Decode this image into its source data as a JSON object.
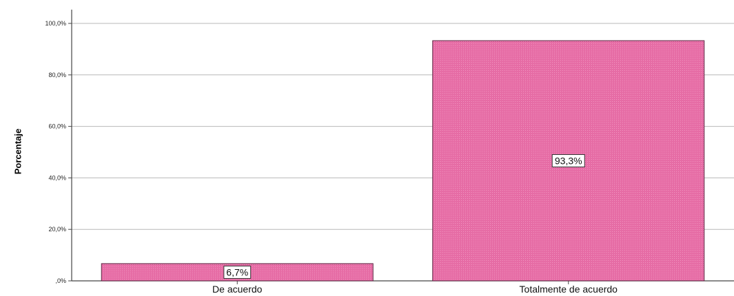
{
  "chart_data": {
    "type": "bar",
    "categories": [
      "De acuerdo",
      "Totalmente de acuerdo"
    ],
    "values": [
      6.7,
      93.3
    ],
    "data_labels": [
      "6,7%",
      "93,3%"
    ],
    "title": "",
    "xlabel": "",
    "ylabel": "Porcentaje",
    "ylim": [
      0,
      100
    ],
    "y_ticks": [
      0,
      20,
      40,
      60,
      80,
      100
    ],
    "y_tick_labels": [
      ",0%",
      "20,0%",
      "40,0%",
      "60,0%",
      "80,0%",
      "100,0%"
    ],
    "grid": true,
    "bar_color": "#e0609a",
    "bar_edge_color": "#5a2340"
  }
}
